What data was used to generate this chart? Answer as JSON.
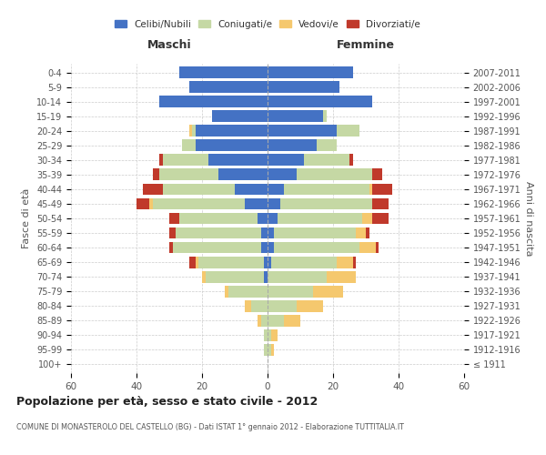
{
  "age_groups": [
    "100+",
    "95-99",
    "90-94",
    "85-89",
    "80-84",
    "75-79",
    "70-74",
    "65-69",
    "60-64",
    "55-59",
    "50-54",
    "45-49",
    "40-44",
    "35-39",
    "30-34",
    "25-29",
    "20-24",
    "15-19",
    "10-14",
    "5-9",
    "0-4"
  ],
  "birth_years": [
    "≤ 1911",
    "1912-1916",
    "1917-1921",
    "1922-1926",
    "1927-1931",
    "1932-1936",
    "1937-1941",
    "1942-1946",
    "1947-1951",
    "1952-1956",
    "1957-1961",
    "1962-1966",
    "1967-1971",
    "1972-1976",
    "1977-1981",
    "1982-1986",
    "1987-1991",
    "1992-1996",
    "1997-2001",
    "2002-2006",
    "2007-2011"
  ],
  "male": {
    "celibi": [
      0,
      0,
      0,
      0,
      0,
      0,
      1,
      1,
      2,
      2,
      3,
      7,
      10,
      15,
      18,
      22,
      22,
      17,
      33,
      24,
      27
    ],
    "coniugati": [
      0,
      1,
      1,
      2,
      5,
      12,
      18,
      20,
      27,
      26,
      24,
      28,
      22,
      18,
      14,
      4,
      1,
      0,
      0,
      0,
      0
    ],
    "vedovi": [
      0,
      0,
      0,
      1,
      2,
      1,
      1,
      1,
      0,
      0,
      0,
      1,
      0,
      0,
      0,
      0,
      1,
      0,
      0,
      0,
      0
    ],
    "divorziati": [
      0,
      0,
      0,
      0,
      0,
      0,
      0,
      2,
      1,
      2,
      3,
      4,
      6,
      2,
      1,
      0,
      0,
      0,
      0,
      0,
      0
    ]
  },
  "female": {
    "nubili": [
      0,
      0,
      0,
      0,
      0,
      0,
      0,
      1,
      2,
      2,
      3,
      4,
      5,
      9,
      11,
      15,
      21,
      17,
      32,
      22,
      26
    ],
    "coniugate": [
      0,
      1,
      1,
      5,
      9,
      14,
      18,
      20,
      26,
      25,
      26,
      28,
      26,
      23,
      14,
      6,
      7,
      1,
      0,
      0,
      0
    ],
    "vedove": [
      0,
      1,
      2,
      5,
      8,
      9,
      9,
      5,
      5,
      3,
      3,
      0,
      1,
      0,
      0,
      0,
      0,
      0,
      0,
      0,
      0
    ],
    "divorziate": [
      0,
      0,
      0,
      0,
      0,
      0,
      0,
      1,
      1,
      1,
      5,
      5,
      6,
      3,
      1,
      0,
      0,
      0,
      0,
      0,
      0
    ]
  },
  "colors": {
    "celibi_nubili": "#4472C4",
    "coniugati": "#C5D8A4",
    "vedovi": "#F5C86E",
    "divorziati": "#C0392B"
  },
  "title": "Popolazione per età, sesso e stato civile - 2012",
  "subtitle": "COMUNE DI MONASTEROLO DEL CASTELLO (BG) - Dati ISTAT 1° gennaio 2012 - Elaborazione TUTTITALIA.IT",
  "xlabel_left": "Maschi",
  "xlabel_right": "Femmine",
  "ylabel": "Fasce di età",
  "ylabel_right": "Anni di nascita",
  "xlim": 60,
  "legend_labels": [
    "Celibi/Nubili",
    "Coniugati/e",
    "Vedovi/e",
    "Divorziati/e"
  ],
  "background_color": "#ffffff",
  "grid_color": "#cccccc"
}
